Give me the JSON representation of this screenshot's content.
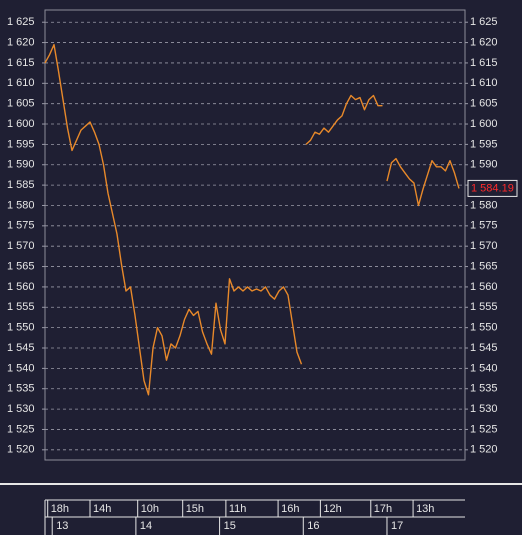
{
  "chart_data": {
    "type": "line",
    "color": "#e8892a",
    "xlim": [
      0,
      46.67
    ],
    "ylim": [
      1517.5,
      1628
    ],
    "yticks": [
      {
        "value": 1520,
        "label": "1 520"
      },
      {
        "value": 1525,
        "label": "1 525"
      },
      {
        "value": 1530,
        "label": "1 530"
      },
      {
        "value": 1535,
        "label": "1 535"
      },
      {
        "value": 1540,
        "label": "1 540"
      },
      {
        "value": 1545,
        "label": "1 545"
      },
      {
        "value": 1550,
        "label": "1 550"
      },
      {
        "value": 1555,
        "label": "1 555"
      },
      {
        "value": 1560,
        "label": "1 560"
      },
      {
        "value": 1565,
        "label": "1 565"
      },
      {
        "value": 1570,
        "label": "1 570"
      },
      {
        "value": 1575,
        "label": "1 575"
      },
      {
        "value": 1580,
        "label": "1 580"
      },
      {
        "value": 1585,
        "label": "1 585"
      },
      {
        "value": 1590,
        "label": "1 590"
      },
      {
        "value": 1595,
        "label": "1 595"
      },
      {
        "value": 1600,
        "label": "1 600"
      },
      {
        "value": 1605,
        "label": "1 605"
      },
      {
        "value": 1610,
        "label": "1 610"
      },
      {
        "value": 1615,
        "label": "1 615"
      },
      {
        "value": 1620,
        "label": "1 620"
      },
      {
        "value": 1625,
        "label": "1 625"
      }
    ],
    "grid": true,
    "xticks": [
      {
        "value": 0.3,
        "label": "18h"
      },
      {
        "value": 5,
        "label": "14h"
      },
      {
        "value": 10.3,
        "label": "10h"
      },
      {
        "value": 15.3,
        "label": "15h"
      },
      {
        "value": 20.1,
        "label": "11h"
      },
      {
        "value": 25.9,
        "label": "16h"
      },
      {
        "value": 30.6,
        "label": "12h"
      },
      {
        "value": 36.2,
        "label": "17h"
      },
      {
        "value": 40.9,
        "label": "13h"
      }
    ],
    "date_ticks": [
      {
        "value": 0.8,
        "label": "13"
      },
      {
        "value": 10.1,
        "label": "14"
      },
      {
        "value": 19.4,
        "label": "15"
      },
      {
        "value": 28.7,
        "label": "16"
      },
      {
        "value": 38,
        "label": "17"
      }
    ],
    "last_label": "1 584.19",
    "x": [
      0,
      0.5,
      1,
      1.5,
      2,
      2.5,
      3,
      3.5,
      4,
      4.5,
      5,
      5.5,
      6,
      6.5,
      7,
      7.5,
      8,
      8.5,
      9,
      9.5,
      10,
      10.5,
      11,
      11.5,
      12,
      12.5,
      13,
      13.5,
      14,
      14.5,
      15,
      15.5,
      16,
      16.5,
      17,
      17.5,
      18,
      18.5,
      19,
      19.5,
      20,
      20.5,
      21,
      21.5,
      22,
      22.5,
      23,
      23.5,
      24,
      24.5,
      25,
      25.5,
      26,
      26.5,
      27,
      27.5,
      28,
      28.5,
      28.75,
      29,
      29.5,
      30,
      30.5,
      31,
      31.5,
      32,
      32.5,
      33,
      33.5,
      34,
      34.5,
      35,
      35.5,
      36,
      36.5,
      37,
      37.5,
      37.75,
      38,
      38.5,
      39,
      39.5,
      40,
      40.5,
      41,
      41.5,
      42,
      42.5,
      43,
      43.5,
      44,
      44.5,
      45,
      45.5,
      46
    ],
    "values": [
      1615,
      1617,
      1619.5,
      1613,
      1606,
      1599,
      1593.5,
      1596,
      1598.5,
      1599.5,
      1600.5,
      1598,
      1595,
      1590,
      1583,
      1578,
      1573,
      1565.5,
      1559,
      1560,
      1553,
      1545,
      1537,
      1533.5,
      1545,
      1550,
      1548,
      1542,
      1546,
      1545,
      1548,
      1552,
      1554.5,
      1553,
      1554,
      1549,
      1546,
      1543.5,
      1556,
      1549.5,
      1546,
      1562,
      1559,
      1560,
      1559,
      1560,
      1559,
      1559.5,
      1559,
      1560,
      1558,
      1557,
      1559,
      1560,
      1558,
      1551,
      1544,
      1541,
      null,
      1595,
      1596,
      1598,
      1597.5,
      1599,
      1598,
      1599.5,
      1601,
      1602,
      1605,
      1607,
      1606,
      1606.5,
      1603.5,
      1606,
      1607,
      1604.5,
      1604.5,
      null,
      1586,
      1590.5,
      1591.5,
      1589.5,
      1588,
      1586.5,
      1585.5,
      1580,
      1584,
      1587.5,
      1591,
      1589.5,
      1589.5,
      1588.5,
      1591,
      1588,
      1584.19
    ]
  }
}
